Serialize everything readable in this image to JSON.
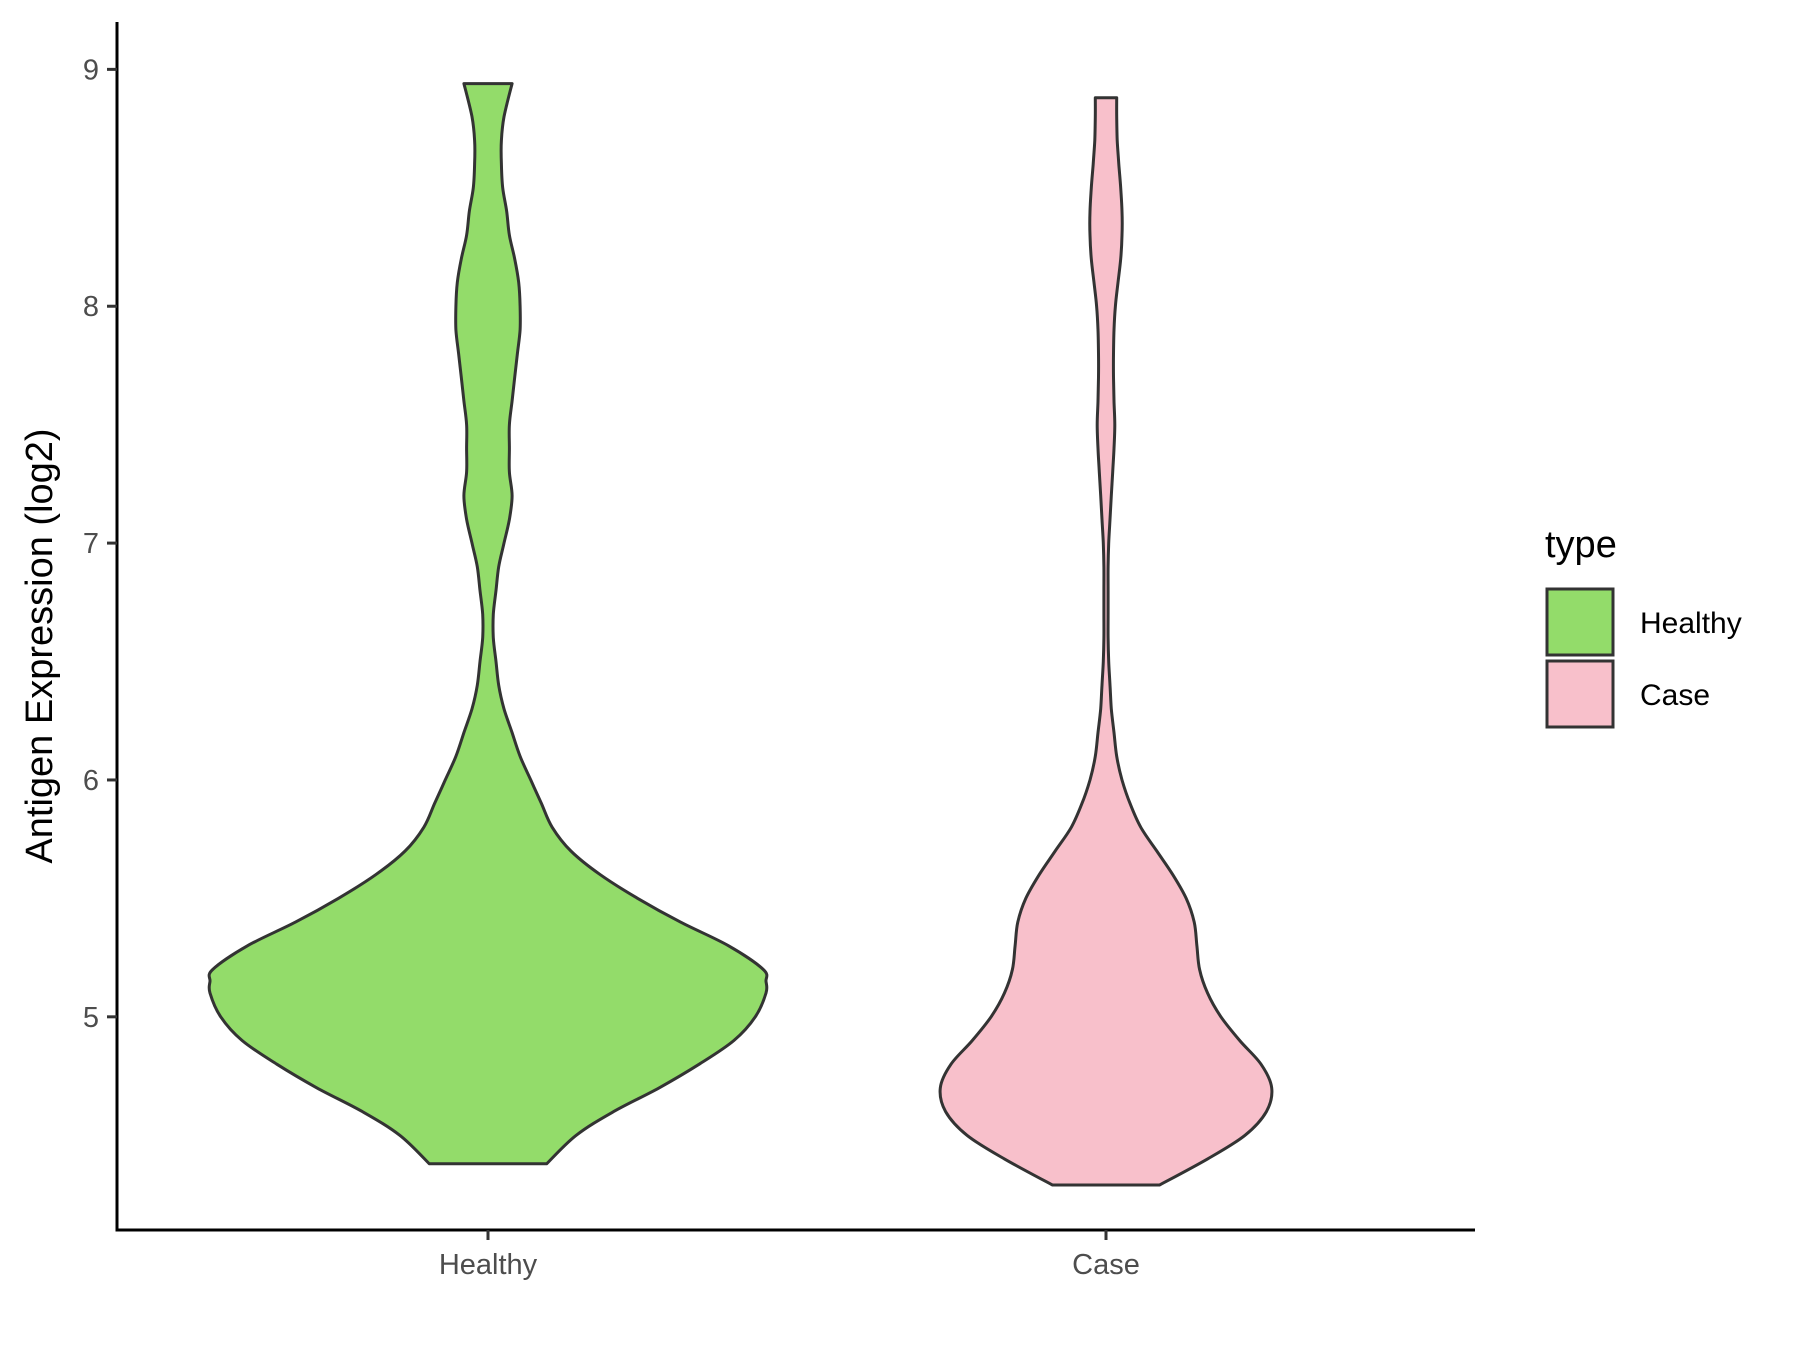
{
  "chart_data": {
    "type": "violin",
    "title": "",
    "xlabel": "",
    "ylabel": "Antigen Expression (log2)",
    "ylim": [
      4.1,
      9.2
    ],
    "yticks": [
      5,
      6,
      7,
      8,
      9
    ],
    "categories": [
      "Healthy",
      "Case"
    ],
    "grid": false,
    "legend": {
      "title": "type",
      "position": "right",
      "entries": [
        {
          "label": "Healthy",
          "color": "#93dc6a"
        },
        {
          "label": "Case",
          "color": "#f8c0cb"
        }
      ]
    },
    "series": [
      {
        "category": "Healthy",
        "color": "#93dc6a",
        "min": 4.38,
        "max": 8.94,
        "density": [
          [
            4.38,
            0.22
          ],
          [
            4.5,
            0.33
          ],
          [
            4.6,
            0.47
          ],
          [
            4.7,
            0.64
          ],
          [
            4.8,
            0.79
          ],
          [
            4.9,
            0.92
          ],
          [
            5.0,
            1.0
          ],
          [
            5.1,
            1.04
          ],
          [
            5.15,
            1.04
          ],
          [
            5.2,
            1.03
          ],
          [
            5.3,
            0.9
          ],
          [
            5.4,
            0.72
          ],
          [
            5.5,
            0.56
          ],
          [
            5.6,
            0.42
          ],
          [
            5.7,
            0.31
          ],
          [
            5.8,
            0.24
          ],
          [
            5.9,
            0.2
          ],
          [
            6.0,
            0.16
          ],
          [
            6.1,
            0.12
          ],
          [
            6.2,
            0.09
          ],
          [
            6.3,
            0.06
          ],
          [
            6.4,
            0.04
          ],
          [
            6.5,
            0.03
          ],
          [
            6.6,
            0.02
          ],
          [
            6.7,
            0.02
          ],
          [
            6.8,
            0.03
          ],
          [
            6.9,
            0.04
          ],
          [
            7.0,
            0.06
          ],
          [
            7.1,
            0.08
          ],
          [
            7.2,
            0.09
          ],
          [
            7.3,
            0.08
          ],
          [
            7.4,
            0.08
          ],
          [
            7.5,
            0.08
          ],
          [
            7.6,
            0.09
          ],
          [
            7.7,
            0.1
          ],
          [
            7.8,
            0.11
          ],
          [
            7.9,
            0.12
          ],
          [
            8.0,
            0.12
          ],
          [
            8.1,
            0.115
          ],
          [
            8.2,
            0.1
          ],
          [
            8.3,
            0.08
          ],
          [
            8.4,
            0.07
          ],
          [
            8.5,
            0.055
          ],
          [
            8.6,
            0.05
          ],
          [
            8.7,
            0.05
          ],
          [
            8.8,
            0.06
          ],
          [
            8.94,
            0.09
          ]
        ]
      },
      {
        "category": "Case",
        "color": "#f8c0cb",
        "min": 4.29,
        "max": 8.88,
        "density": [
          [
            4.29,
            0.2
          ],
          [
            4.4,
            0.38
          ],
          [
            4.5,
            0.52
          ],
          [
            4.6,
            0.6
          ],
          [
            4.7,
            0.62
          ],
          [
            4.8,
            0.58
          ],
          [
            4.9,
            0.5
          ],
          [
            5.0,
            0.43
          ],
          [
            5.1,
            0.38
          ],
          [
            5.2,
            0.35
          ],
          [
            5.3,
            0.34
          ],
          [
            5.4,
            0.33
          ],
          [
            5.5,
            0.3
          ],
          [
            5.6,
            0.25
          ],
          [
            5.7,
            0.19
          ],
          [
            5.8,
            0.13
          ],
          [
            5.9,
            0.09
          ],
          [
            6.0,
            0.06
          ],
          [
            6.1,
            0.04
          ],
          [
            6.2,
            0.03
          ],
          [
            6.3,
            0.02
          ],
          [
            6.4,
            0.015
          ],
          [
            6.5,
            0.01
          ],
          [
            6.6,
            0.008
          ],
          [
            6.7,
            0.008
          ],
          [
            6.8,
            0.008
          ],
          [
            6.9,
            0.008
          ],
          [
            7.0,
            0.01
          ],
          [
            7.1,
            0.015
          ],
          [
            7.2,
            0.02
          ],
          [
            7.3,
            0.025
          ],
          [
            7.4,
            0.03
          ],
          [
            7.5,
            0.033
          ],
          [
            7.6,
            0.03
          ],
          [
            7.7,
            0.028
          ],
          [
            7.8,
            0.028
          ],
          [
            7.9,
            0.03
          ],
          [
            8.0,
            0.035
          ],
          [
            8.1,
            0.045
          ],
          [
            8.2,
            0.055
          ],
          [
            8.3,
            0.06
          ],
          [
            8.4,
            0.06
          ],
          [
            8.5,
            0.055
          ],
          [
            8.6,
            0.048
          ],
          [
            8.7,
            0.042
          ],
          [
            8.8,
            0.04
          ],
          [
            8.88,
            0.04
          ]
        ]
      }
    ]
  }
}
